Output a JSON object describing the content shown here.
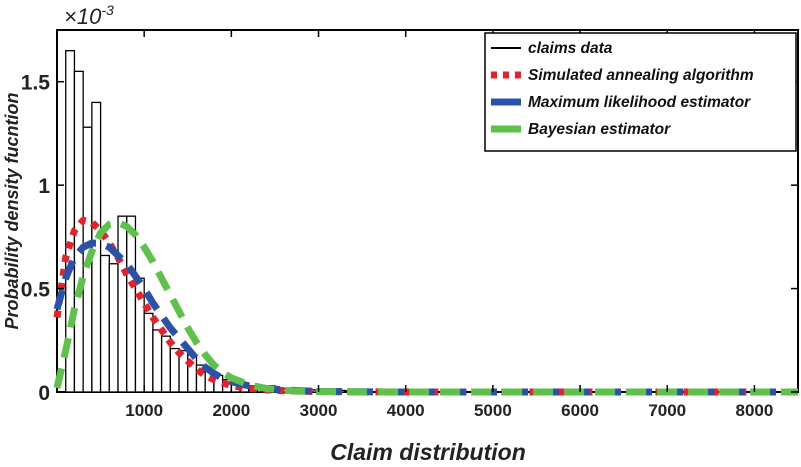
{
  "chart_data": {
    "type": "histogram_with_lines",
    "xlabel": "Claim distribution",
    "ylabel": "Probability density fucntion",
    "y_multiplier": {
      "base": "×10",
      "exponent": "-3"
    },
    "xlim": [
      0,
      8500
    ],
    "ylim": [
      0,
      1.75
    ],
    "x_ticks": [
      1000,
      2000,
      3000,
      4000,
      5000,
      6000,
      7000,
      8000
    ],
    "x_tick_labels": [
      "1000",
      "2000",
      "3000",
      "4000",
      "5000",
      "6000",
      "7000",
      "8000"
    ],
    "y_ticks": [
      0,
      0.5,
      1,
      1.5
    ],
    "y_tick_labels": [
      "0",
      "0.5",
      "1",
      "1.5"
    ],
    "legend_position": "top-right",
    "grid": false,
    "histogram": {
      "name": "claims data",
      "bin_width": 100,
      "bin_starts": [
        100,
        200,
        300,
        400,
        500,
        600,
        700,
        800,
        900,
        1000,
        1100,
        1200,
        1300,
        1400,
        1500,
        1600,
        1700,
        1800,
        1900,
        2000,
        2100,
        2200,
        2300,
        2400,
        2500,
        2600,
        2700,
        2800,
        2900,
        3000,
        3100,
        3200,
        3300,
        3400
      ],
      "values": [
        1.65,
        1.55,
        1.28,
        1.4,
        0.66,
        0.62,
        0.85,
        0.85,
        0.55,
        0.38,
        0.3,
        0.27,
        0.21,
        0.2,
        0.18,
        0.13,
        0.1,
        0.08,
        0.06,
        0.05,
        0.04,
        0.03,
        0.02,
        0.03,
        0.02,
        0.015,
        0.012,
        0.012,
        0.01,
        0.01,
        0.008,
        0.008,
        0.006,
        0.006
      ]
    },
    "series": [
      {
        "name": "Simulated annealing algorithm",
        "color": "#e8202a",
        "style": "dotted",
        "x": [
          0,
          100,
          200,
          300,
          400,
          500,
          600,
          700,
          800,
          900,
          1000,
          1100,
          1200,
          1300,
          1400,
          1500,
          1600,
          1700,
          1800,
          1900,
          2000,
          2200,
          2400,
          2600,
          2800,
          3000,
          3300,
          3600,
          4000,
          5000,
          6000,
          7000,
          8000,
          8500
        ],
        "y": [
          0.36,
          0.65,
          0.78,
          0.83,
          0.82,
          0.78,
          0.72,
          0.65,
          0.57,
          0.5,
          0.43,
          0.36,
          0.3,
          0.24,
          0.19,
          0.15,
          0.11,
          0.08,
          0.06,
          0.045,
          0.03,
          0.018,
          0.01,
          0.006,
          0.004,
          0.002,
          0.001,
          0.0005,
          0,
          0,
          0,
          0,
          0,
          0
        ]
      },
      {
        "name": "Maximum likelihood estimator",
        "color": "#2a52a8",
        "style": "dashed",
        "x": [
          0,
          100,
          200,
          300,
          400,
          500,
          600,
          700,
          800,
          900,
          1000,
          1100,
          1200,
          1300,
          1400,
          1500,
          1600,
          1700,
          1800,
          1900,
          2000,
          2200,
          2400,
          2600,
          2800,
          3000,
          3300,
          3600,
          4000,
          5000,
          6000,
          7000,
          8000,
          8500
        ],
        "y": [
          0.4,
          0.55,
          0.65,
          0.7,
          0.72,
          0.72,
          0.7,
          0.66,
          0.62,
          0.56,
          0.5,
          0.43,
          0.37,
          0.31,
          0.26,
          0.21,
          0.16,
          0.12,
          0.09,
          0.065,
          0.05,
          0.03,
          0.017,
          0.01,
          0.006,
          0.003,
          0.0015,
          0.0007,
          0,
          0,
          0,
          0,
          0,
          0
        ]
      },
      {
        "name": "Bayesian estimator",
        "color": "#5ec24a",
        "style": "dashed",
        "x": [
          0,
          100,
          200,
          300,
          400,
          500,
          600,
          700,
          800,
          900,
          1000,
          1100,
          1200,
          1300,
          1400,
          1500,
          1600,
          1700,
          1800,
          1900,
          2000,
          2200,
          2400,
          2600,
          2800,
          3000,
          3300,
          3600,
          4000,
          5000,
          6000,
          7000,
          8000,
          8500
        ],
        "y": [
          0.02,
          0.2,
          0.4,
          0.56,
          0.68,
          0.77,
          0.81,
          0.82,
          0.8,
          0.76,
          0.7,
          0.63,
          0.55,
          0.47,
          0.39,
          0.31,
          0.24,
          0.18,
          0.13,
          0.095,
          0.068,
          0.035,
          0.017,
          0.008,
          0.004,
          0.002,
          0.0008,
          0.0003,
          0,
          0,
          0,
          0,
          0,
          0
        ]
      }
    ],
    "legend": [
      {
        "label": "claims data",
        "color": "#000000",
        "style": "solid"
      },
      {
        "label": "Simulated annealing algorithm",
        "color": "#e8202a",
        "style": "dotted"
      },
      {
        "label": "Maximum likelihood estimator",
        "color": "#2a52a8",
        "style": "dashed"
      },
      {
        "label": "Bayesian estimator",
        "color": "#5ec24a",
        "style": "dashed"
      }
    ]
  }
}
